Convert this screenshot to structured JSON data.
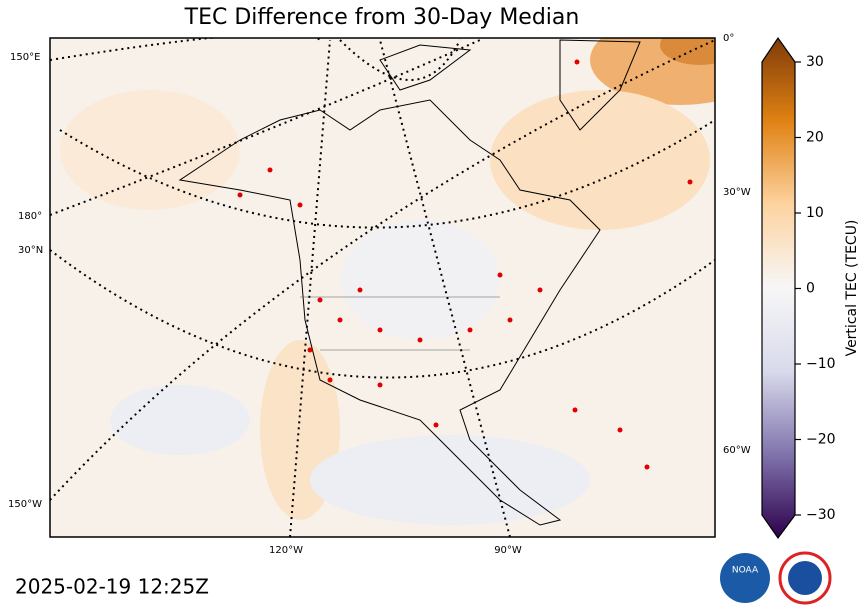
{
  "header": {
    "title": "TEC Difference from 30-Day Median"
  },
  "map": {
    "graticule_labels": [
      "0°",
      "150°E",
      "180°",
      "30°N",
      "30°W",
      "60°W",
      "150°W",
      "120°W",
      "90°W"
    ]
  },
  "colorbar": {
    "label": "Vertical TEC (TECU)",
    "lim": [
      -30,
      30
    ],
    "ticks": [
      {
        "value": -30,
        "label": "−30"
      },
      {
        "value": -20,
        "label": "−20"
      },
      {
        "value": -10,
        "label": "−10"
      },
      0,
      10,
      20,
      30
    ],
    "colors": [
      "#2d004b",
      "#8073ac",
      "#d8daeb",
      "#f7f7f7",
      "#fdd3a0",
      "#e08214",
      "#7f3b08"
    ]
  },
  "footer": {
    "timestamp": "2025-02-19 12:25Z"
  }
}
